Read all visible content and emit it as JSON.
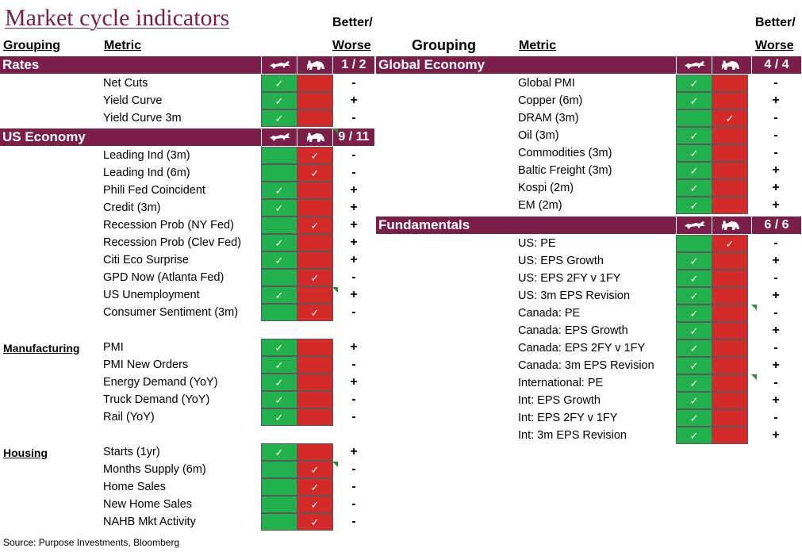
{
  "title": "Market cycle indicators",
  "headers": {
    "grouping": "Grouping",
    "metric": "Metric",
    "better_line1": "Better/",
    "better_line2": "Worse"
  },
  "colors": {
    "bar": "#7b1f4a",
    "bull_green": "#22b14c",
    "bear_red": "#d42a2a"
  },
  "icons": {
    "bull": "bull-icon",
    "bear": "bear-icon",
    "check": "✓"
  },
  "left": {
    "bars": [
      {
        "label": "Rates",
        "score": "1 / 2"
      },
      {
        "label": "US Economy",
        "score": "9 / 11"
      }
    ],
    "rates": [
      {
        "metric": "Net Cuts",
        "state": "bull",
        "sign": "-"
      },
      {
        "metric": "Yield Curve",
        "state": "bull",
        "sign": "+"
      },
      {
        "metric": "Yield Curve 3m",
        "state": "bull",
        "sign": "-"
      }
    ],
    "us_economy": [
      {
        "metric": "Leading Ind (3m)",
        "state": "bear",
        "sign": "-"
      },
      {
        "metric": "Leading Ind (6m)",
        "state": "bear",
        "sign": "-"
      },
      {
        "metric": "Phili Fed Coincident",
        "state": "bull",
        "sign": "+"
      },
      {
        "metric": "Credit (3m)",
        "state": "bull",
        "sign": "+"
      },
      {
        "metric": "Recession Prob (NY Fed)",
        "state": "bear",
        "sign": "+"
      },
      {
        "metric": "Recession Prob (Clev Fed)",
        "state": "bull",
        "sign": "+"
      },
      {
        "metric": "Citi Eco Surprise",
        "state": "bull",
        "sign": "+"
      },
      {
        "metric": "GPD Now (Atlanta Fed)",
        "state": "bear",
        "sign": "-"
      },
      {
        "metric": "US Unemployment",
        "state": "bull",
        "sign": "+"
      },
      {
        "metric": "Consumer Sentiment (3m)",
        "state": "bear",
        "sign": "-"
      }
    ],
    "manufacturing_label": "Manufacturing",
    "manufacturing": [
      {
        "metric": "PMI",
        "state": "bull",
        "sign": "+"
      },
      {
        "metric": "PMI New Orders",
        "state": "bull",
        "sign": "-"
      },
      {
        "metric": "Energy Demand (YoY)",
        "state": "bull",
        "sign": "+"
      },
      {
        "metric": "Truck Demand (YoY)",
        "state": "bull",
        "sign": "-"
      },
      {
        "metric": "Rail (YoY)",
        "state": "bull",
        "sign": "-"
      }
    ],
    "housing_label": "Housing",
    "housing": [
      {
        "metric": "Starts (1yr)",
        "state": "bull",
        "sign": "+"
      },
      {
        "metric": "Months Supply (6m)",
        "state": "bear",
        "sign": "-"
      },
      {
        "metric": "Home Sales",
        "state": "bear",
        "sign": "-"
      },
      {
        "metric": "New Home Sales",
        "state": "bear",
        "sign": "-"
      },
      {
        "metric": "NAHB Mkt Activity",
        "state": "bear",
        "sign": "-"
      }
    ]
  },
  "right": {
    "bars": [
      {
        "label": "Global Economy",
        "score": "4 / 4"
      },
      {
        "label": "Fundamentals",
        "score": "6 / 6"
      }
    ],
    "global_economy": [
      {
        "metric": "Global PMI",
        "state": "bull",
        "sign": "-"
      },
      {
        "metric": "Copper (6m)",
        "state": "bull",
        "sign": "+"
      },
      {
        "metric": "DRAM (3m)",
        "state": "bear",
        "sign": "-"
      },
      {
        "metric": "Oil (3m)",
        "state": "bull",
        "sign": "-"
      },
      {
        "metric": "Commodities (3m)",
        "state": "bull",
        "sign": "-"
      },
      {
        "metric": "Baltic Freight (3m)",
        "state": "bull",
        "sign": "+"
      },
      {
        "metric": "Kospi (2m)",
        "state": "bull",
        "sign": "+"
      },
      {
        "metric": "EM (2m)",
        "state": "bull",
        "sign": "+"
      }
    ],
    "fundamentals": [
      {
        "metric": "US: PE",
        "state": "bear",
        "sign": "-"
      },
      {
        "metric": "US: EPS Growth",
        "state": "bull",
        "sign": "+"
      },
      {
        "metric": "US: EPS 2FY v 1FY",
        "state": "bull",
        "sign": "-"
      },
      {
        "metric": "US: 3m EPS Revision",
        "state": "bull",
        "sign": "+"
      },
      {
        "metric": "Canada: PE",
        "state": "bull",
        "sign": "-"
      },
      {
        "metric": "Canada: EPS Growth",
        "state": "bull",
        "sign": "+"
      },
      {
        "metric": "Canada: EPS 2FY v 1FY",
        "state": "bull",
        "sign": "-"
      },
      {
        "metric": "Canada: 3m EPS Revision",
        "state": "bull",
        "sign": "+"
      },
      {
        "metric": "International: PE",
        "state": "bull",
        "sign": "-"
      },
      {
        "metric": "Int: EPS Growth",
        "state": "bull",
        "sign": "+"
      },
      {
        "metric": "Int: EPS 2FY v 1FY",
        "state": "bull",
        "sign": "-"
      },
      {
        "metric": "Int: 3m EPS Revision",
        "state": "bull",
        "sign": "+"
      }
    ]
  },
  "source": "Source: Purpose Investments, Bloomberg"
}
